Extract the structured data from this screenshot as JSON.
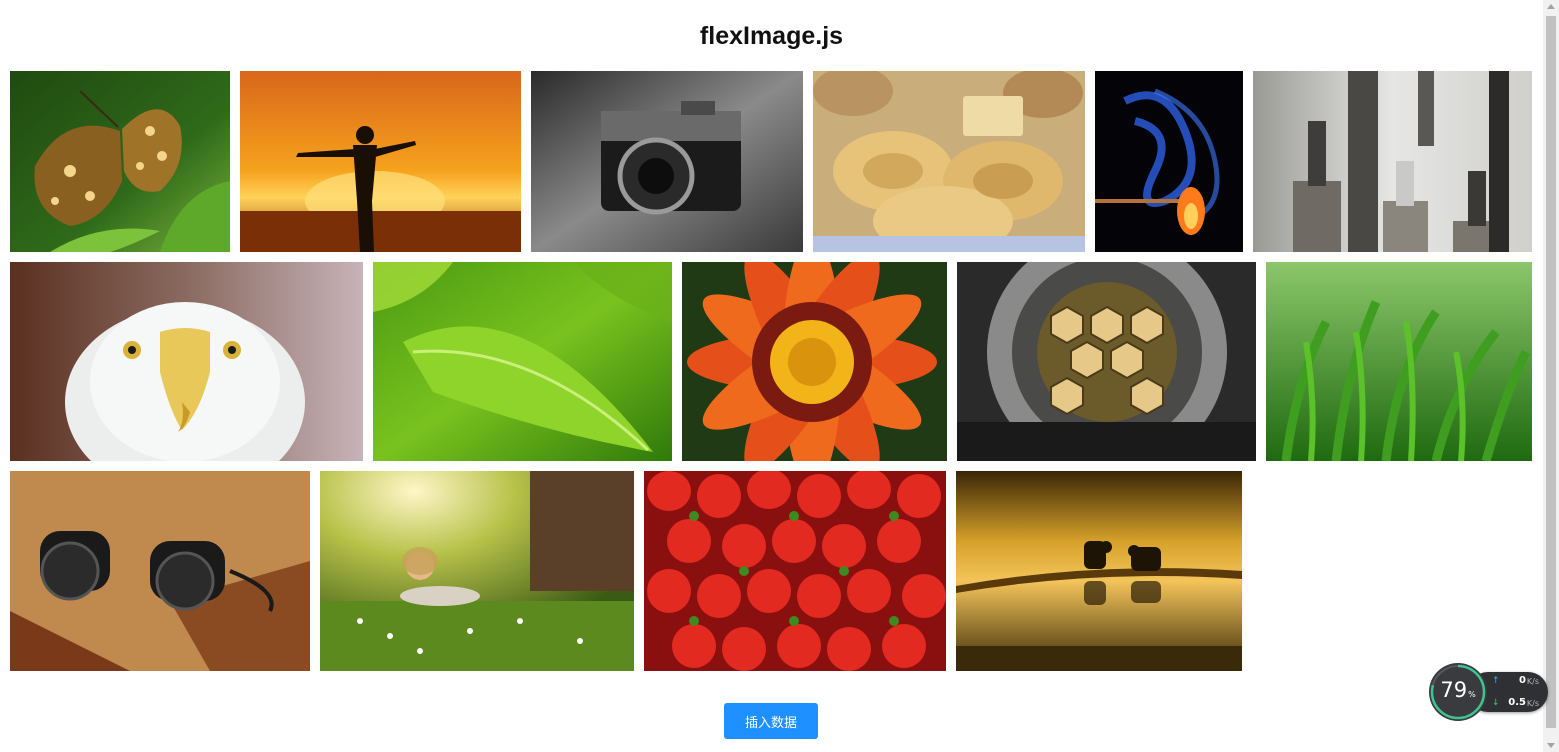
{
  "page": {
    "title": "flexImage.js"
  },
  "gallery": {
    "photos": [
      {
        "name": "butterfly-photo",
        "subject": "butterfly"
      },
      {
        "name": "sunset-silhouette-photo",
        "subject": "man at sunset"
      },
      {
        "name": "camera-photo",
        "subject": "Olympus camera"
      },
      {
        "name": "pasta-photo",
        "subject": "pasta nests"
      },
      {
        "name": "match-smoke-photo",
        "subject": "burning match"
      },
      {
        "name": "drill-bits-photo",
        "subject": "milling cutters"
      },
      {
        "name": "eagle-photo",
        "subject": "bald eagle"
      },
      {
        "name": "green-leaf-photo",
        "subject": "nettle leaf"
      },
      {
        "name": "orange-flower-photo",
        "subject": "gazania flower"
      },
      {
        "name": "telescope-mirror-photo",
        "subject": "telescope mirror"
      },
      {
        "name": "grass-photo",
        "subject": "green grass"
      },
      {
        "name": "binoculars-photo",
        "subject": "binoculars"
      },
      {
        "name": "girl-meadow-photo",
        "subject": "girl in meadow"
      },
      {
        "name": "strawberries-photo",
        "subject": "strawberries"
      },
      {
        "name": "elephants-photo",
        "subject": "elephants at dusk"
      }
    ]
  },
  "actions": {
    "insert_label": "插入数据"
  },
  "net_widget": {
    "percent": "79",
    "percent_sign": "%",
    "upload_value": "0",
    "download_value": "0.5",
    "unit": "K/s",
    "up_arrow": "↑",
    "down_arrow": "↓"
  },
  "colors": {
    "accent": "#1e90ff",
    "widget_bg": "#2f3033",
    "gauge_ring": "#3dc48f"
  }
}
